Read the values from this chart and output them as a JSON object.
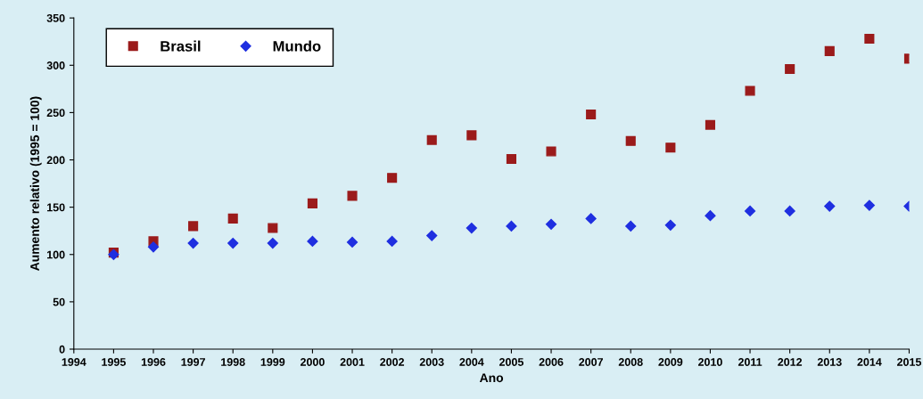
{
  "chart_data": {
    "type": "scatter",
    "xlabel": "Ano",
    "ylabel": "Aumento relativo (1995 = 100)",
    "x": [
      1995,
      1996,
      1997,
      1998,
      1999,
      2000,
      2001,
      2002,
      2003,
      2004,
      2005,
      2006,
      2007,
      2008,
      2009,
      2010,
      2011,
      2012,
      2013,
      2014,
      2015
    ],
    "series": [
      {
        "name": "Brasil",
        "color": "#9b1b1b",
        "marker": "square",
        "values": [
          102,
          114,
          130,
          138,
          128,
          154,
          162,
          181,
          221,
          226,
          201,
          209,
          248,
          220,
          213,
          237,
          273,
          296,
          315,
          328,
          307
        ]
      },
      {
        "name": "Mundo",
        "color": "#1f2fe0",
        "marker": "diamond",
        "values": [
          100,
          108,
          112,
          112,
          112,
          114,
          113,
          114,
          120,
          128,
          130,
          132,
          138,
          130,
          131,
          141,
          146,
          146,
          151,
          152,
          151
        ]
      }
    ],
    "xlim": [
      1994,
      2015
    ],
    "xticks": [
      1994,
      1995,
      1996,
      1997,
      1998,
      1999,
      2000,
      2001,
      2002,
      2003,
      2004,
      2005,
      2006,
      2007,
      2008,
      2009,
      2010,
      2011,
      2012,
      2013,
      2014,
      2015
    ],
    "ylim": [
      0,
      350
    ],
    "yticks": [
      0,
      50,
      100,
      150,
      200,
      250,
      300,
      350
    ],
    "grid": false,
    "legend": "top left"
  }
}
